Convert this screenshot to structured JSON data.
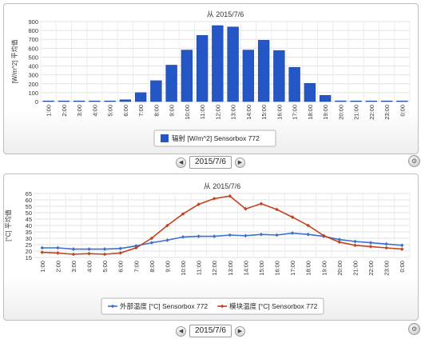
{
  "chart_data": [
    {
      "type": "bar",
      "title": "从 2015/7/6",
      "ylabel": "[W/m^2] 平均值",
      "categories": [
        "1:00",
        "2:00",
        "3:00",
        "4:00",
        "5:00",
        "6:00",
        "7:00",
        "8:00",
        "9:00",
        "10:00",
        "11:00",
        "12:00",
        "13:00",
        "14:00",
        "15:00",
        "16:00",
        "17:00",
        "18:00",
        "19:00",
        "20:00",
        "21:00",
        "22:00",
        "23:00",
        "0:00"
      ],
      "ylim": [
        0,
        900
      ],
      "yticks": [
        0,
        100,
        200,
        300,
        400,
        500,
        600,
        700,
        800,
        900
      ],
      "grid": true,
      "legend_position": "bottom",
      "series": [
        {
          "name": "辐射 [W/m^2] Sensorbox 772",
          "color": "#2457c5",
          "values": [
            0,
            0,
            0,
            0,
            0,
            20,
            100,
            235,
            410,
            580,
            745,
            855,
            840,
            580,
            690,
            575,
            385,
            205,
            70,
            8,
            0,
            0,
            0,
            0
          ]
        }
      ]
    },
    {
      "type": "line",
      "title": "从 2015/7/6",
      "ylabel": "[°C] 平均值",
      "categories": [
        "1:00",
        "2:00",
        "3:00",
        "4:00",
        "5:00",
        "6:00",
        "7:00",
        "8:00",
        "9:00",
        "10:00",
        "11:00",
        "12:00",
        "13:00",
        "14:00",
        "15:00",
        "16:00",
        "17:00",
        "18:00",
        "19:00",
        "20:00",
        "21:00",
        "22:00",
        "23:00",
        "0:00"
      ],
      "ylim": [
        15,
        65
      ],
      "yticks": [
        15,
        20,
        25,
        30,
        35,
        40,
        45,
        50,
        55,
        60,
        65
      ],
      "grid": true,
      "legend_position": "bottom",
      "series": [
        {
          "name": "外部温度 [°C] Sensorbox 772",
          "color": "#3b6fd0",
          "values": [
            22.5,
            22.5,
            21.5,
            21.5,
            21.5,
            22,
            24,
            26.5,
            28.5,
            31,
            31.5,
            31.5,
            32.5,
            32,
            33,
            32.5,
            34,
            33,
            31.5,
            29,
            27.5,
            26.5,
            25.5,
            24.5
          ]
        },
        {
          "name": "模块温度 [°C] Sensorbox 772",
          "color": "#c0441f",
          "values": [
            19,
            18.5,
            17.5,
            18,
            17.5,
            18.5,
            22.5,
            30,
            40,
            49,
            56.5,
            61,
            63,
            53,
            57,
            52.5,
            46.5,
            40,
            32,
            27,
            24.5,
            23.5,
            22.5,
            21.5
          ]
        }
      ]
    }
  ],
  "pager": {
    "date": "2015/7/6",
    "prev": "◀",
    "next": "▶"
  },
  "icons": {
    "prev": "chevron-left-icon",
    "next": "chevron-right-icon",
    "gear": "gear-icon"
  }
}
